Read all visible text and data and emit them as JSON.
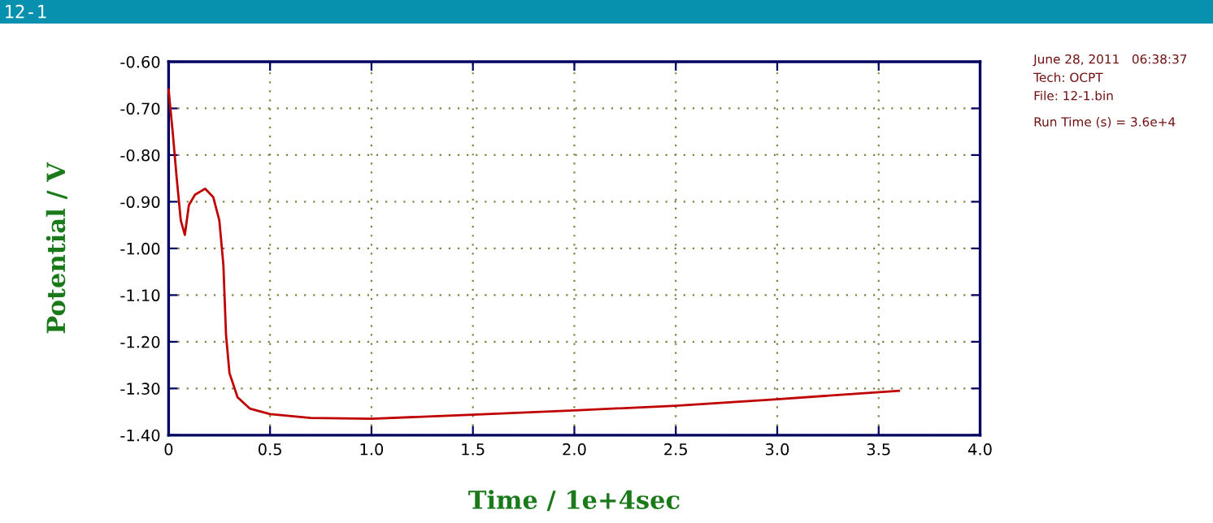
{
  "chart_data": {
    "type": "line",
    "title": "12-1",
    "xlabel": "Time / 1e+4sec",
    "ylabel": "Potential / V",
    "annotations": [
      "June 28, 2011   06:38:37",
      "Tech: OCPT",
      "File: 12-1.bin",
      "Run Time (s) = 3.6e+4"
    ],
    "x": [
      0,
      0.02,
      0.04,
      0.06,
      0.08,
      0.1,
      0.13,
      0.18,
      0.22,
      0.25,
      0.27,
      0.283,
      0.3,
      0.34,
      0.4,
      0.5,
      0.7,
      1.0,
      1.5,
      2.0,
      2.5,
      3.0,
      3.6
    ],
    "series": [
      {
        "color": "#c00000",
        "values": [
          -0.66,
          -0.75,
          -0.85,
          -0.94,
          -0.971,
          -0.907,
          -0.885,
          -0.872,
          -0.89,
          -0.94,
          -1.035,
          -1.185,
          -1.267,
          -1.319,
          -1.343,
          -1.355,
          -1.363,
          -1.365,
          -1.356,
          -1.347,
          -1.337,
          -1.323,
          -1.305
        ]
      }
    ],
    "xlim": [
      0,
      4.0
    ],
    "ylim": [
      -1.4,
      -0.6
    ],
    "xticks": [
      0,
      0.5,
      {
        "value": 1,
        "label": "1.0"
      },
      1.5,
      {
        "value": 2,
        "label": "2.0"
      },
      2.5,
      {
        "value": 3,
        "label": "3.0"
      },
      3.5,
      {
        "value": 4,
        "label": "4.0"
      }
    ],
    "yticks": [
      {
        "value": -1.4,
        "label": "-1.40"
      },
      {
        "value": -1.3,
        "label": "-1.30"
      },
      {
        "value": -1.2,
        "label": "-1.20"
      },
      {
        "value": -1.1,
        "label": "-1.10"
      },
      {
        "value": -1.0,
        "label": "-1.00"
      },
      {
        "value": -0.9,
        "label": "-0.90"
      },
      {
        "value": -0.8,
        "label": "-0.80"
      },
      {
        "value": -0.7,
        "label": "-0.70"
      },
      {
        "value": -0.6,
        "label": "-0.60"
      }
    ],
    "grid": true,
    "legend": false,
    "marker": "none",
    "line_style": "solid"
  }
}
